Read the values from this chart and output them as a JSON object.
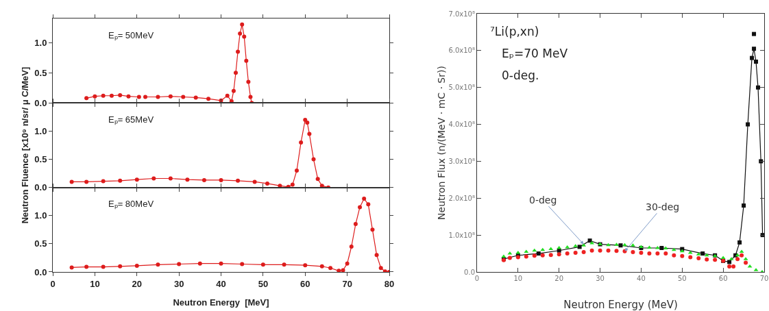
{
  "chart_data": [
    {
      "type": "line",
      "xlim": [
        0,
        80
      ],
      "xticks": [
        0,
        10,
        20,
        30,
        40,
        50,
        60,
        70,
        80
      ],
      "ylim": [
        0,
        1.4
      ],
      "yticks": [
        {
          "value": 0,
          "label": "0.0"
        },
        {
          "value": 0.5,
          "label": "0.5"
        },
        {
          "value": 1,
          "label": "1.0"
        }
      ],
      "tick_labels": "y",
      "grid": false,
      "annotations": [
        "Eₚ= 50MeV"
      ],
      "series": [
        {
          "marker": "circle",
          "color": "#dd1c1c",
          "x": [
            8,
            10,
            12,
            14,
            16,
            18,
            20.5,
            21,
            22,
            25,
            28,
            31,
            34,
            37,
            40,
            41.5,
            42.5,
            43,
            43.5,
            44,
            44.5,
            45,
            45.5,
            46,
            46.5,
            47,
            47.3
          ],
          "values": [
            0.08,
            0.11,
            0.12,
            0.12,
            0.13,
            0.11,
            0.1,
            null,
            0.1,
            0.1,
            0.11,
            0.1,
            0.09,
            0.07,
            0.04,
            0.12,
            0.03,
            0.2,
            0.5,
            0.85,
            1.15,
            1.3,
            1.1,
            0.7,
            0.35,
            0.1,
            0
          ]
        }
      ]
    },
    {
      "type": "line",
      "xlim": [
        0,
        80
      ],
      "xticks": [
        0,
        10,
        20,
        30,
        40,
        50,
        60,
        70,
        80
      ],
      "ylim": [
        0,
        1.5
      ],
      "yticks": [
        {
          "value": 0,
          "label": "0.0"
        },
        {
          "value": 0.5,
          "label": "0.5"
        },
        {
          "value": 1,
          "label": "1.0"
        }
      ],
      "tick_labels": "y",
      "grid": false,
      "ylabel": "Neutron Fluence [x10⁹ n/sr/ μ C/MeV]",
      "annotations": [
        "Eₚ= 65MeV"
      ],
      "series": [
        {
          "marker": "circle",
          "color": "#dd1c1c",
          "x": [
            4.5,
            8,
            12,
            16,
            20,
            24,
            28,
            32,
            36,
            40,
            44,
            48,
            51,
            54,
            56,
            57,
            58,
            59,
            60,
            60.5,
            61,
            62,
            63,
            64,
            65.5
          ],
          "values": [
            0.1,
            0.1,
            0.11,
            0.12,
            0.14,
            0.16,
            0.16,
            0.14,
            0.13,
            0.13,
            0.12,
            0.1,
            0.07,
            0.03,
            0.01,
            0.05,
            0.3,
            0.8,
            1.2,
            1.15,
            0.95,
            0.5,
            0.15,
            0.03,
            0
          ]
        }
      ]
    },
    {
      "type": "line",
      "xlim": [
        0,
        80
      ],
      "xticks": [
        0,
        10,
        20,
        30,
        40,
        50,
        60,
        70,
        80
      ],
      "ylim": [
        0,
        1.5
      ],
      "yticks": [
        {
          "value": 0,
          "label": "0.0"
        },
        {
          "value": 0.5,
          "label": "0.5"
        },
        {
          "value": 1,
          "label": "1.0"
        }
      ],
      "grid": false,
      "xlabel": "Neutron Energy  [MeV]",
      "annotations": [
        "Eₚ= 80MeV"
      ],
      "series": [
        {
          "marker": "circle",
          "color": "#dd1c1c",
          "x": [
            4.5,
            8,
            12,
            16,
            20,
            25,
            30,
            35,
            40,
            45,
            50,
            55,
            60,
            64,
            66,
            68,
            69,
            70,
            71,
            72,
            73,
            74,
            75,
            76,
            77,
            78,
            79,
            80
          ],
          "values": [
            0.08,
            0.09,
            0.09,
            0.1,
            0.11,
            0.13,
            0.14,
            0.15,
            0.15,
            0.14,
            0.13,
            0.13,
            0.12,
            0.1,
            0.07,
            0.02,
            0.03,
            0.15,
            0.45,
            0.85,
            1.15,
            1.3,
            1.2,
            0.75,
            0.3,
            0.07,
            0.01,
            0
          ]
        }
      ]
    },
    {
      "type": "line",
      "xlim": [
        0,
        70
      ],
      "xticks": [
        0,
        10,
        20,
        30,
        40,
        50,
        60,
        70
      ],
      "ylim": [
        0,
        700000000.0
      ],
      "yticks": [
        {
          "value": 0,
          "label": "0.0"
        },
        {
          "value": 100000000.0,
          "label": "1.0x10⁸"
        },
        {
          "value": 200000000.0,
          "label": "2.0x10⁸"
        },
        {
          "value": 300000000.0,
          "label": "3.0x10⁸"
        },
        {
          "value": 400000000.0,
          "label": "4.0x10⁸"
        },
        {
          "value": 500000000.0,
          "label": "5.0x10⁸"
        },
        {
          "value": 600000000.0,
          "label": "6.0x10⁸"
        },
        {
          "value": 700000000.0,
          "label": "7.0x10⁸"
        }
      ],
      "grid": false,
      "xlabel": "Neutron Energy (MeV)",
      "ylabel": "Neutron Flux (n/(MeV · mC · Sr))",
      "annotations": [
        "⁷Li(p,xn)",
        "Eₚ=70 MeV",
        "0-deg.",
        {
          "text": "0-deg",
          "x": 26,
          "y": 75000000.0
        },
        {
          "text": "30-deg",
          "x": 36,
          "y": 56000000.0
        }
      ],
      "series": [
        {
          "marker": "square",
          "color": "#111111",
          "x": [
            6.5,
            10,
            15,
            20,
            25,
            27.5,
            30,
            35,
            40,
            45,
            50,
            55,
            58,
            60,
            61.5,
            63,
            64,
            65,
            66,
            67,
            67.5,
            68,
            68.5,
            69.2,
            69.6
          ],
          "values": [
            35000000.0,
            45000000.0,
            50000000.0,
            58000000.0,
            68000000.0,
            85000000.0,
            75000000.0,
            72000000.0,
            65000000.0,
            65000000.0,
            62000000.0,
            50000000.0,
            45000000.0,
            30000000.0,
            27000000.0,
            45000000.0,
            80000000.0,
            180000000.0,
            400000000.0,
            580000000.0,
            605000000.0,
            570000000.0,
            500000000.0,
            300000000.0,
            100000000.0
          ]
        },
        {
          "type": "scatter",
          "marker": "square",
          "color": "#111111",
          "x": [
            67.5
          ],
          "values": [
            645000000.0
          ]
        },
        {
          "type": "scatter",
          "marker": "triangle",
          "color": "#22dd22",
          "x": [
            6.5,
            8,
            10,
            12,
            14,
            16,
            18,
            20,
            22,
            24,
            26,
            28,
            30,
            32,
            34,
            36,
            38,
            40,
            42,
            44,
            46,
            48,
            50,
            52,
            54,
            56,
            58,
            60,
            62,
            63.5,
            64.5,
            65.5,
            66.5,
            68,
            69.5
          ],
          "values": [
            42000000.0,
            50000000.0,
            52000000.0,
            55000000.0,
            58000000.0,
            60000000.0,
            62000000.0,
            65000000.0,
            67000000.0,
            70000000.0,
            72000000.0,
            78000000.0,
            75000000.0,
            73000000.0,
            74000000.0,
            73000000.0,
            72000000.0,
            68000000.0,
            66000000.0,
            65000000.0,
            64000000.0,
            60000000.0,
            56000000.0,
            52000000.0,
            48000000.0,
            45000000.0,
            43000000.0,
            38000000.0,
            35000000.0,
            45000000.0,
            55000000.0,
            35000000.0,
            15000000.0,
            5000000.0,
            0
          ]
        },
        {
          "type": "scatter",
          "marker": "circle",
          "color": "#ee2222",
          "x": [
            6.5,
            8,
            10,
            12,
            14,
            16,
            18,
            20,
            22,
            24,
            26,
            28,
            30,
            32,
            34,
            36,
            38,
            40,
            42,
            44,
            46,
            48,
            50,
            52,
            54,
            56,
            58,
            60,
            61.5,
            62.5,
            63.5,
            64.5,
            65.5
          ],
          "values": [
            32000000.0,
            38000000.0,
            40000000.0,
            42000000.0,
            44000000.0,
            45000000.0,
            46000000.0,
            48000000.0,
            50000000.0,
            52000000.0,
            54000000.0,
            58000000.0,
            58000000.0,
            58000000.0,
            57000000.0,
            56000000.0,
            54000000.0,
            52000000.0,
            50000000.0,
            50000000.0,
            50000000.0,
            45000000.0,
            43000000.0,
            40000000.0,
            37000000.0,
            34000000.0,
            33000000.0,
            30000000.0,
            15000000.0,
            15000000.0,
            35000000.0,
            45000000.0,
            25000000.0
          ]
        }
      ]
    }
  ]
}
